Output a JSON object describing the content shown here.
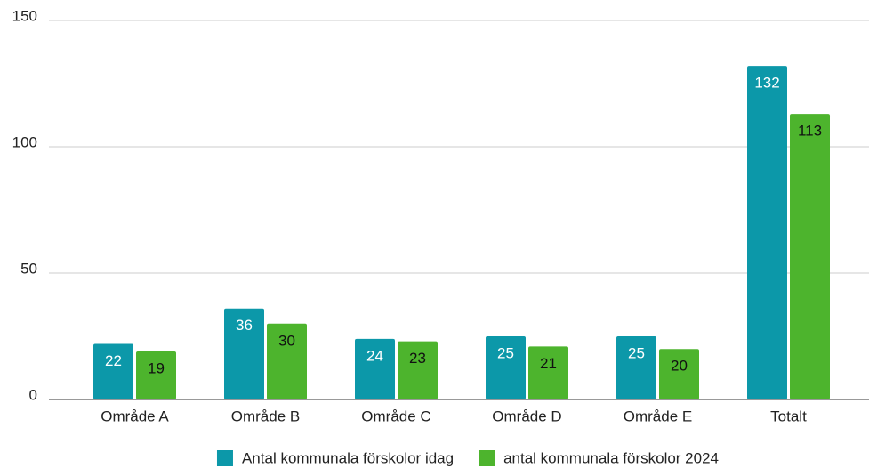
{
  "chart_data": {
    "type": "bar",
    "categories": [
      "Område A",
      "Område B",
      "Område C",
      "Område D",
      "Område E",
      "Totalt"
    ],
    "series": [
      {
        "name": "Antal kommunala förskolor idag",
        "color": "#0c98a9",
        "label_color": "#ffffff",
        "values": [
          22,
          36,
          24,
          25,
          25,
          132
        ]
      },
      {
        "name": "antal kommunala förskolor 2024",
        "color": "#4db42d",
        "label_color": "#111111",
        "values": [
          19,
          30,
          23,
          21,
          20,
          113
        ]
      }
    ],
    "ylim": [
      0,
      150
    ],
    "yticks": [
      0,
      50,
      100,
      150
    ],
    "grid": true,
    "legend": "bottom"
  }
}
